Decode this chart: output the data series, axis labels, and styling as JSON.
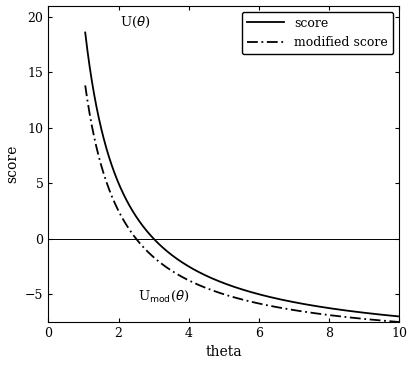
{
  "title": "",
  "xlabel": "theta",
  "ylabel": "score",
  "xlim": [
    0,
    10
  ],
  "ylim": [
    -7.5,
    21
  ],
  "yticks": [
    -5,
    0,
    5,
    10,
    15,
    20
  ],
  "xticks": [
    0,
    2,
    4,
    6,
    8,
    10
  ],
  "theta_start": 1.05,
  "theta_max": 10.0,
  "n_points": 1000,
  "score_label": "score",
  "mod_score_label": "modified score",
  "line_color": "#000000",
  "background_color": "#ffffff",
  "legend_fontsize": 9,
  "axis_fontsize": 10,
  "label_fontsize": 9.5,
  "hline_y": 0,
  "score_a": 30.0,
  "score_b": 10.0,
  "mod_extra_a": 10.0,
  "mod_extra_b": 2.0
}
